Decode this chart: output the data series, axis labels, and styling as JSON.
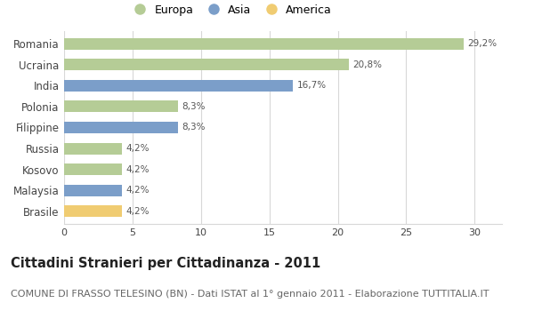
{
  "categories": [
    "Romania",
    "Ucraina",
    "India",
    "Polonia",
    "Filippine",
    "Russia",
    "Kosovo",
    "Malaysia",
    "Brasile"
  ],
  "values": [
    29.2,
    20.8,
    16.7,
    8.3,
    8.3,
    4.2,
    4.2,
    4.2,
    4.2
  ],
  "labels": [
    "29,2%",
    "20,8%",
    "16,7%",
    "8,3%",
    "8,3%",
    "4,2%",
    "4,2%",
    "4,2%",
    "4,2%"
  ],
  "continents": [
    "Europa",
    "Europa",
    "Asia",
    "Europa",
    "Asia",
    "Europa",
    "Europa",
    "Asia",
    "America"
  ],
  "colors": {
    "Europa": "#b5cc96",
    "Asia": "#7b9ec9",
    "America": "#f0cc72"
  },
  "legend_entries": [
    "Europa",
    "Asia",
    "America"
  ],
  "xlim": [
    0,
    32
  ],
  "xticks": [
    0,
    5,
    10,
    15,
    20,
    25,
    30
  ],
  "title": "Cittadini Stranieri per Cittadinanza - 2011",
  "subtitle": "COMUNE DI FRASSO TELESINO (BN) - Dati ISTAT al 1° gennaio 2011 - Elaborazione TUTTITALIA.IT",
  "background_color": "#ffffff",
  "grid_color": "#d8d8d8",
  "bar_height": 0.55,
  "title_fontsize": 10.5,
  "subtitle_fontsize": 8,
  "label_fontsize": 7.5,
  "ytick_fontsize": 8.5,
  "xtick_fontsize": 8,
  "legend_fontsize": 9
}
